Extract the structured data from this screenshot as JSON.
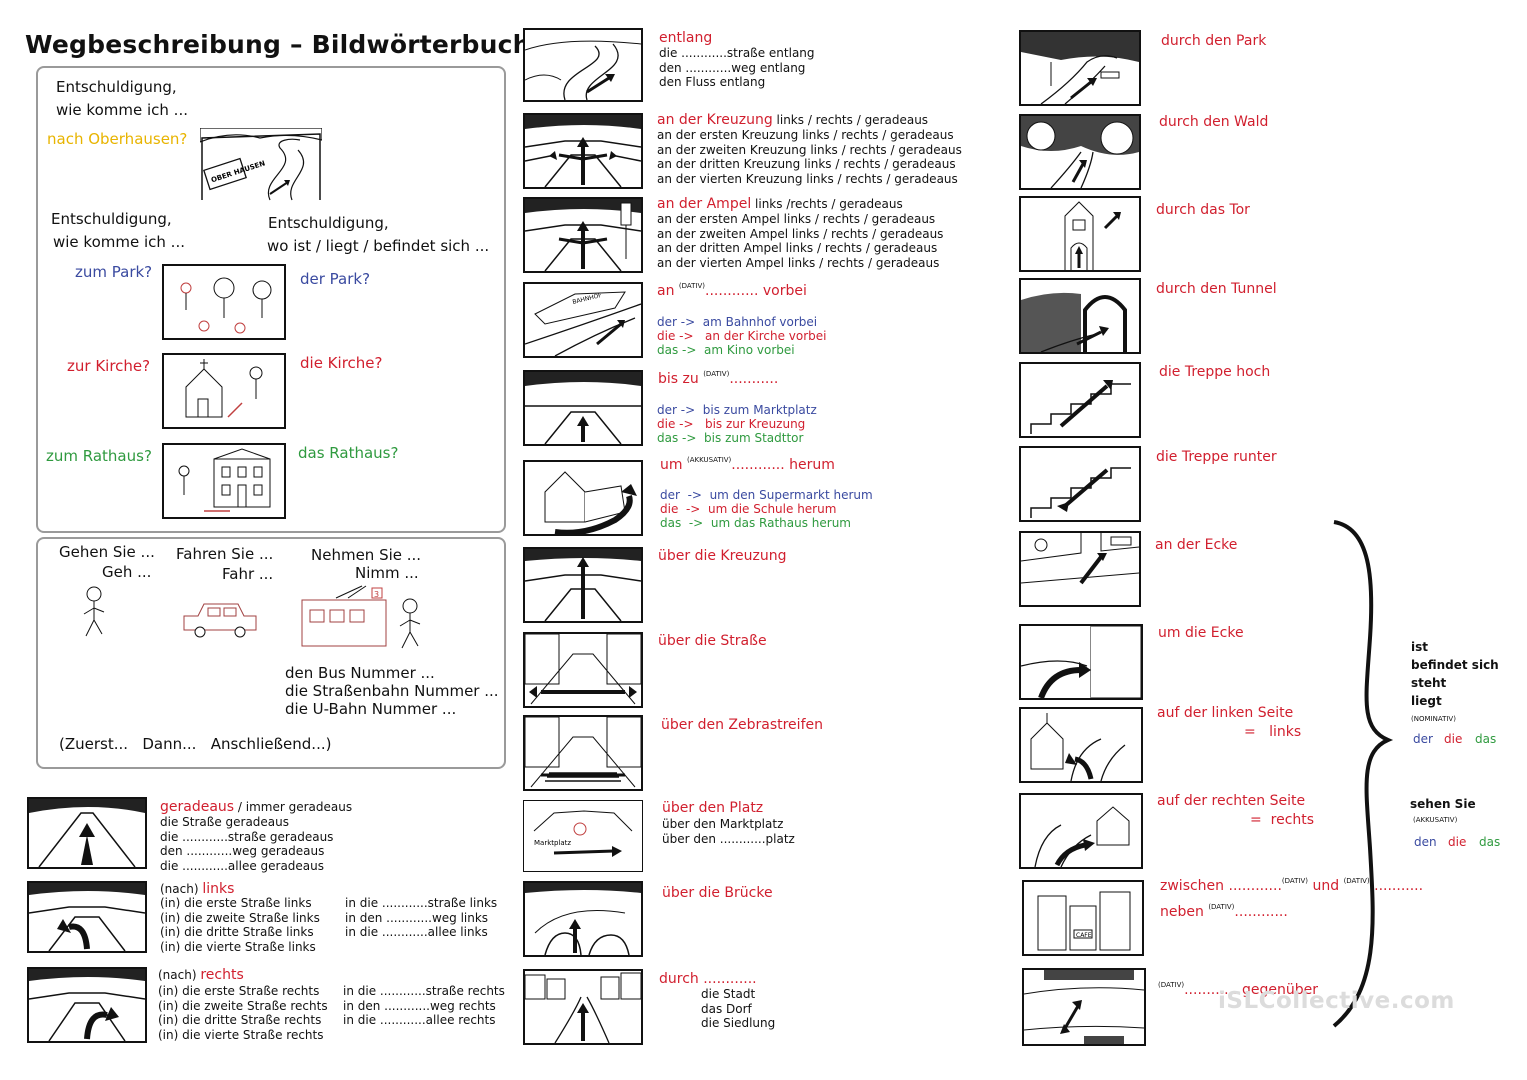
{
  "title": "Wegbeschreibung – Bildwörterbuch",
  "intro": {
    "q1a": "Entschuldigung,",
    "q1b": "wie komme ich ...",
    "oberhausen": "nach Oberhausen?",
    "sign": "OBER HAUSEN",
    "q2a": "Entschuldigung,",
    "q2b": "wie komme ich ...",
    "q3a": "Entschuldigung,",
    "q3b": "wo ist / liegt / befindet sich ...",
    "zum_park": "zum Park?",
    "der_park": "der Park?",
    "zur_kirche": "zur Kirche?",
    "die_kirche": "die Kirche?",
    "zum_rathaus": "zum Rathaus?",
    "das_rathaus": "das  Rathaus?"
  },
  "transport": {
    "gehen1": "Gehen Sie ...",
    "gehen2": "Geh ...",
    "fahren1": "Fahren Sie ...",
    "fahren2": "Fahr ...",
    "nehmen1": "Nehmen Sie ...",
    "nehmen2": "Nimm ...",
    "tram_number": "3",
    "bus": "den Bus Nummer ...",
    "strassenbahn": "die Straßenbahn Nummer ...",
    "ubahn": "die U-Bahn Nummer ...",
    "sequence": "(Zuerst...   Dann...   Anschließend...)"
  },
  "left_bottom": {
    "geradeaus_head": "geradeaus",
    "geradeaus_rest": " / immer geradeaus",
    "geradeaus_lines": [
      "die Straße geradeaus",
      "die ............straße geradeaus",
      "den ............weg geradeaus",
      "die ............allee geradeaus"
    ],
    "links_pre": "(nach) ",
    "links_head": "links",
    "links_lines": [
      "(in) die erste Straße links",
      "(in) die zweite Straße links",
      "(in) die dritte Straße links",
      "(in) die vierte Straße links"
    ],
    "links_lines2": [
      "in die ............straße links",
      "in den ............weg links",
      "in die ............allee links"
    ],
    "rechts_pre": "(nach) ",
    "rechts_head": "rechts",
    "rechts_lines": [
      "(in) die erste Straße rechts",
      "(in) die zweite Straße rechts",
      "(in) die dritte Straße  rechts",
      "(in) die vierte Straße rechts"
    ],
    "rechts_lines2": [
      "in die ............straße  rechts",
      "in den ............weg  rechts",
      "in die ............allee  rechts"
    ]
  },
  "middle": {
    "entlang_head": "entlang",
    "entlang_lines": [
      "die ............straße entlang",
      "den ............weg entlang",
      "den Fluss entlang"
    ],
    "kreuzung_head": "an der Kreuzung",
    "kreuzung_rest": " links / rechts  / geradeaus",
    "kreuzung_lines": [
      "an der ersten Kreuzung links / rechts  / geradeaus",
      "an der zweiten Kreuzung links / rechts / geradeaus",
      "an der dritten Kreuzung links / rechts  / geradeaus",
      "an der vierten Kreuzung links / rechts  / geradeaus"
    ],
    "ampel_head": "an der Ampel",
    "ampel_rest": " links /rechts  / geradeaus",
    "ampel_lines": [
      "an der ersten Ampel links  / rechts  / geradeaus",
      "an der zweiten Ampel links  / rechts  / geradeaus",
      "an der dritten Ampel links  / rechts  / geradeaus",
      "an der vierten Ampel links  / rechts  / geradeaus"
    ],
    "vorbei_a": "an ",
    "vorbei_dots": "............",
    "vorbei_b": " vorbei",
    "dativ": "(DATIV)",
    "akkusativ": "(AKKUSATIV)",
    "vorbei_der": "der ->  am Bahnhof vorbei",
    "vorbei_die": "die ->   an der Kirche vorbei",
    "vorbei_das": "das ->  am Kino vorbei",
    "bahnhof_sign": "BAHNHOF",
    "biszu_a": "bis zu ",
    "biszu_dots": "...........",
    "biszu_der": "der ->  bis zum Marktplatz",
    "biszu_die": "die ->   bis zur Kreuzung",
    "biszu_das": "das ->  bis zum Stadttor",
    "um_a": "um ",
    "um_dots": "............",
    "um_b": " herum",
    "um_der": "der  ->  um den Supermarkt herum",
    "um_die": "die  ->  um die Schule herum",
    "um_das": "das  ->  um das Rathaus herum",
    "ueber_kreuzung": "über die Kreuzung",
    "ueber_strasse": "über die Straße",
    "ueber_zebra": "über den Zebrastreifen",
    "ueber_platz_head": "über den Platz",
    "ueber_platz_lines": [
      "über den Marktplatz",
      "über den ............platz"
    ],
    "marktplatz_sign": "Marktplatz",
    "ueber_bruecke": "über die Brücke",
    "durch_head": "durch ............",
    "durch_lines": [
      "die Stadt",
      "das Dorf",
      "die Siedlung"
    ]
  },
  "right": {
    "park": "durch den Park",
    "wald": "durch den Wald",
    "tor": "durch das Tor",
    "tunnel": "durch den Tunnel",
    "treppe_hoch": "die Treppe hoch",
    "treppe_runter": "die Treppe runter",
    "ecke_an": "an der Ecke",
    "ecke_um": "um die Ecke",
    "linke_seite": "auf der linken Seite",
    "linke_eq": "=   links",
    "rechte_seite": "auf der rechten Seite",
    "rechte_eq": "=  rechts",
    "zwischen_a": "zwischen ",
    "zwischen_dots": "............",
    "zwischen_und": " und ",
    "neben_a": "neben  ",
    "neben_dots": "............",
    "gegenueber_dots": "............",
    "gegenueber_b": "  gegenüber",
    "cafe_sign": "CAFE"
  },
  "side": {
    "ist": "ist",
    "befindet": "befindet sich",
    "steht": "steht",
    "liegt": "liegt",
    "nominativ": "(NOMINATIV)",
    "der": "der",
    "die": "die",
    "das": "das",
    "sehen": "sehen Sie",
    "akkusativ": "(AKKUSATIV)",
    "den": "den",
    "die2": "die",
    "das2": "das"
  },
  "watermark": "iSLCollective.com",
  "colors": {
    "red": "#d11f2e",
    "blue": "#3a4aa0",
    "green": "#2f9a3f",
    "yellow": "#e8b400"
  }
}
